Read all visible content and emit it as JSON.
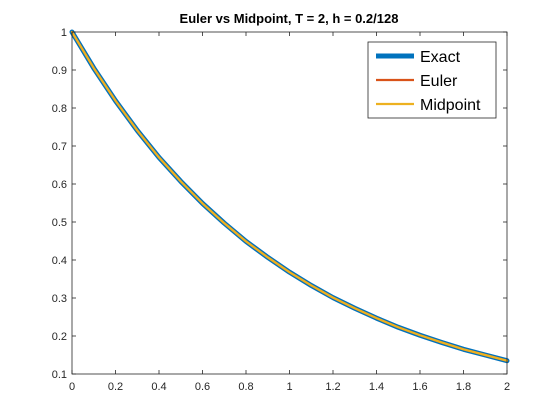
{
  "chart_data": {
    "type": "line",
    "title": "Euler vs Midpoint, T = 2, h = 0.2/128",
    "xlabel": "",
    "ylabel": "",
    "xlim": [
      0,
      2
    ],
    "ylim": [
      0.1,
      1
    ],
    "xticks": [
      "0",
      "0.2",
      "0.4",
      "0.6",
      "0.8",
      "1",
      "1.2",
      "1.4",
      "1.6",
      "1.8",
      "2"
    ],
    "yticks": [
      "0.1",
      "0.2",
      "0.3",
      "0.4",
      "0.5",
      "0.6",
      "0.7",
      "0.8",
      "0.9",
      "1"
    ],
    "grid": false,
    "legend_position": "top-right",
    "x": [
      0,
      0.1,
      0.2,
      0.3,
      0.4,
      0.5,
      0.6,
      0.7,
      0.8,
      0.9,
      1.0,
      1.1,
      1.2,
      1.3,
      1.4,
      1.5,
      1.6,
      1.7,
      1.8,
      1.9,
      2.0
    ],
    "series": [
      {
        "name": "Exact",
        "color": "#0072BD",
        "values": [
          1.0,
          0.905,
          0.819,
          0.741,
          0.67,
          0.607,
          0.549,
          0.497,
          0.449,
          0.407,
          0.368,
          0.333,
          0.301,
          0.273,
          0.247,
          0.223,
          0.202,
          0.183,
          0.165,
          0.15,
          0.135
        ]
      },
      {
        "name": "Euler",
        "color": "#D95319",
        "values": [
          1.0,
          0.905,
          0.819,
          0.741,
          0.67,
          0.607,
          0.549,
          0.497,
          0.449,
          0.407,
          0.368,
          0.333,
          0.301,
          0.273,
          0.247,
          0.223,
          0.202,
          0.183,
          0.165,
          0.15,
          0.135
        ]
      },
      {
        "name": "Midpoint",
        "color": "#EDB120",
        "values": [
          1.0,
          0.905,
          0.819,
          0.741,
          0.67,
          0.607,
          0.549,
          0.497,
          0.449,
          0.407,
          0.368,
          0.333,
          0.301,
          0.273,
          0.247,
          0.223,
          0.202,
          0.183,
          0.165,
          0.15,
          0.135
        ]
      }
    ]
  }
}
